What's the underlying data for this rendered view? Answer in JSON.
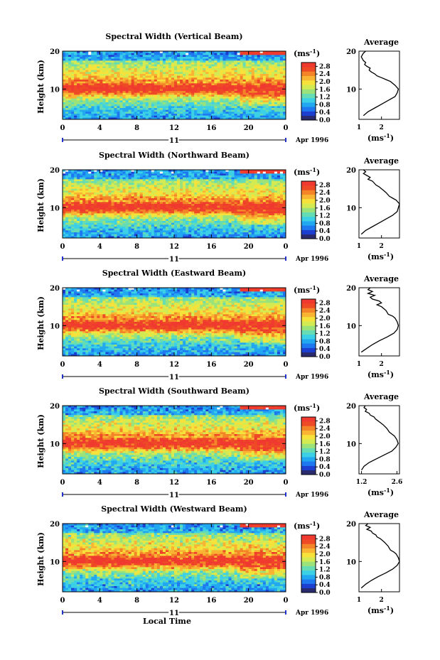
{
  "figure": {
    "xlabel_bottom": "Local Time",
    "date_label": "Apr 1996",
    "day_label": "11",
    "ylabel": "Height (km)",
    "colorbar_unit": "(ms",
    "colorbar_unit_exp": "-1",
    "colorbar_unit_close": ")",
    "avg_title": "Average",
    "avg_xunit": "(ms",
    "avg_xunit_exp": "-1",
    "avg_xunit_close": ")"
  },
  "chart_data": [
    {
      "type": "heatmap",
      "title": "Spectral Width (Vertical Beam)",
      "xlim": [
        0,
        24
      ],
      "xticks": [
        "0",
        "4",
        "8",
        "12",
        "16",
        "20",
        "0"
      ],
      "ylim": [
        2,
        20
      ],
      "yticks": [
        "20",
        "10"
      ],
      "colorbar_ticks": [
        "2.8",
        "2.4",
        "2.0",
        "1.6",
        "1.2",
        "0.8",
        "0.4",
        "0.0"
      ],
      "average": {
        "xlim": [
          1,
          2.8
        ],
        "xticks": [
          "1",
          "2"
        ],
        "x": [
          1.3,
          1.2,
          1.1,
          1.2,
          1.3,
          1.25,
          1.35,
          1.5,
          1.45,
          1.55,
          1.7,
          1.8,
          2.0,
          2.2,
          2.4,
          2.6,
          2.75,
          2.7,
          2.6,
          2.3,
          2.0,
          1.7,
          1.4,
          1.2
        ],
        "y": [
          20,
          19.5,
          18.5,
          17.5,
          17,
          16.5,
          16,
          15.5,
          15,
          14.5,
          14,
          13.5,
          13,
          12.5,
          12,
          11,
          10,
          9,
          8,
          7,
          6,
          5,
          4,
          3
        ]
      }
    },
    {
      "type": "heatmap",
      "title": "Spectral Width (Northward Beam)",
      "xlim": [
        0,
        24
      ],
      "xticks": [
        "0",
        "4",
        "8",
        "12",
        "16",
        "20",
        "0"
      ],
      "ylim": [
        2,
        20
      ],
      "yticks": [
        "20",
        "10"
      ],
      "colorbar_ticks": [
        "2.8",
        "2.4",
        "2.0",
        "1.6",
        "1.2",
        "0.8",
        "0.4",
        "0.0"
      ],
      "average": {
        "xlim": [
          1,
          2.8
        ],
        "xticks": [
          "1",
          "2"
        ],
        "x": [
          1.2,
          1.3,
          1.2,
          1.35,
          1.5,
          1.4,
          1.6,
          1.75,
          1.9,
          2.0,
          2.1,
          2.2,
          2.35,
          2.5,
          2.65,
          2.8,
          2.75,
          2.7,
          2.5,
          2.2,
          1.9,
          1.6,
          1.3,
          1.1
        ],
        "y": [
          20,
          19.5,
          19,
          18.5,
          18,
          17.5,
          17,
          16,
          15.5,
          15,
          14.5,
          14,
          13,
          12.5,
          12,
          11,
          10,
          9,
          8,
          7,
          6,
          5,
          4,
          3
        ]
      }
    },
    {
      "type": "heatmap",
      "title": "Spectral Width (Eastward Beam)",
      "xlim": [
        0,
        24
      ],
      "xticks": [
        "0",
        "4",
        "8",
        "12",
        "16",
        "20",
        "0"
      ],
      "ylim": [
        2,
        20
      ],
      "yticks": [
        "20",
        "10"
      ],
      "colorbar_ticks": [
        "2.8",
        "2.4",
        "2.0",
        "1.6",
        "1.2",
        "0.8",
        "0.4",
        "0.0"
      ],
      "average": {
        "xlim": [
          1,
          2.8
        ],
        "xticks": [
          "1",
          "2"
        ],
        "x": [
          1.5,
          1.4,
          1.6,
          1.4,
          1.7,
          1.5,
          1.6,
          1.9,
          2.0,
          1.8,
          2.0,
          2.2,
          2.3,
          2.5,
          2.6,
          2.7,
          2.75,
          2.7,
          2.55,
          2.25,
          1.9,
          1.6,
          1.35,
          1.1
        ],
        "y": [
          20,
          19.5,
          19,
          18.5,
          18,
          17.5,
          17,
          16.5,
          16,
          15.5,
          15,
          14,
          13,
          12.5,
          12,
          11,
          10,
          9,
          8,
          7,
          6,
          5,
          4,
          3
        ]
      }
    },
    {
      "type": "heatmap",
      "title": "Spectral Width (Southward Beam)",
      "xlim": [
        0,
        24
      ],
      "xticks": [
        "0",
        "4",
        "8",
        "12",
        "16",
        "20",
        "0"
      ],
      "ylim": [
        2,
        20
      ],
      "yticks": [
        "20",
        "10"
      ],
      "colorbar_ticks": [
        "2.8",
        "2.4",
        "2.0",
        "1.6",
        "1.2",
        "0.8",
        "0.4",
        "0.0"
      ],
      "average": {
        "xlim": [
          1.1,
          2.7
        ],
        "xticks": [
          "1.2",
          "2.6"
        ],
        "x": [
          1.35,
          1.3,
          1.4,
          1.35,
          1.5,
          1.55,
          1.7,
          1.75,
          1.85,
          1.95,
          2.05,
          2.2,
          2.3,
          2.4,
          2.5,
          2.6,
          2.65,
          2.55,
          2.4,
          2.1,
          1.8,
          1.5,
          1.3,
          1.2
        ],
        "y": [
          20,
          19.5,
          19,
          18.5,
          18,
          17.5,
          17,
          16.5,
          16,
          15.5,
          15,
          14,
          13,
          12.5,
          12,
          11,
          10,
          9,
          8,
          7,
          6,
          5,
          4,
          3
        ]
      }
    },
    {
      "type": "heatmap",
      "title": "Spectral Width (Westward Beam)",
      "xlim": [
        0,
        24
      ],
      "xticks": [
        "0",
        "4",
        "8",
        "12",
        "16",
        "20",
        "0"
      ],
      "ylim": [
        2,
        20
      ],
      "yticks": [
        "20",
        "10"
      ],
      "colorbar_ticks": [
        "2.8",
        "2.4",
        "2.0",
        "1.6",
        "1.2",
        "0.8",
        "0.4",
        "0.0"
      ],
      "average": {
        "xlim": [
          1,
          2.8
        ],
        "xticks": [
          "1",
          "2"
        ],
        "x": [
          1.4,
          1.3,
          1.5,
          1.35,
          1.55,
          1.6,
          1.75,
          1.8,
          1.95,
          2.05,
          2.15,
          2.3,
          2.4,
          2.55,
          2.65,
          2.75,
          2.8,
          2.7,
          2.5,
          2.2,
          1.85,
          1.55,
          1.3,
          1.1
        ],
        "y": [
          20,
          19.5,
          19,
          18.5,
          18,
          17.5,
          17,
          16.5,
          16,
          15.5,
          15,
          14,
          13,
          12.5,
          12,
          11,
          10,
          9,
          8,
          7,
          6,
          5,
          4,
          3
        ]
      }
    }
  ]
}
